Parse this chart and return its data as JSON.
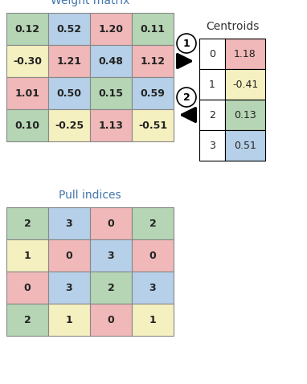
{
  "weight_matrix": {
    "title": "Weight matrix",
    "values": [
      [
        "0.12",
        "0.52",
        "1.20",
        "0.11"
      ],
      [
        "-0.30",
        "1.21",
        "0.48",
        "1.12"
      ],
      [
        "1.01",
        "0.50",
        "0.15",
        "0.59"
      ],
      [
        "0.10",
        "-0.25",
        "1.13",
        "-0.51"
      ]
    ],
    "colors": [
      [
        "#b5d5b5",
        "#b5d0e8",
        "#f0b8b8",
        "#b5d5b5"
      ],
      [
        "#f5f0c0",
        "#f0b8b8",
        "#b5d0e8",
        "#f0b8b8"
      ],
      [
        "#f0b8b8",
        "#b5d0e8",
        "#b5d5b5",
        "#b5d0e8"
      ],
      [
        "#b5d5b5",
        "#f5f0c0",
        "#f0b8b8",
        "#f5f0c0"
      ]
    ]
  },
  "pull_indices": {
    "title": "Pull indices",
    "values": [
      [
        "2",
        "3",
        "0",
        "2"
      ],
      [
        "1",
        "0",
        "3",
        "0"
      ],
      [
        "0",
        "3",
        "2",
        "3"
      ],
      [
        "2",
        "1",
        "0",
        "1"
      ]
    ],
    "colors": [
      [
        "#b5d5b5",
        "#b5d0e8",
        "#f0b8b8",
        "#b5d5b5"
      ],
      [
        "#f5f0c0",
        "#f0b8b8",
        "#b5d0e8",
        "#f0b8b8"
      ],
      [
        "#f0b8b8",
        "#b5d0e8",
        "#b5d5b5",
        "#b5d0e8"
      ],
      [
        "#b5d5b5",
        "#f5f0c0",
        "#f0b8b8",
        "#f5f0c0"
      ]
    ]
  },
  "centroids": {
    "title": "Centroids",
    "indices": [
      "0",
      "1",
      "2",
      "3"
    ],
    "values": [
      "1.18",
      "-0.41",
      "0.13",
      "0.51"
    ],
    "value_colors": [
      "#f0b8b8",
      "#f5f0c0",
      "#b5d5b5",
      "#b5d0e8"
    ]
  },
  "arrow1_label": "1",
  "arrow2_label": "2",
  "bg_color": "#ffffff",
  "title_color": "#4477aa",
  "centroid_title_color": "#333333",
  "text_color": "#222222",
  "border_color": "#888888"
}
